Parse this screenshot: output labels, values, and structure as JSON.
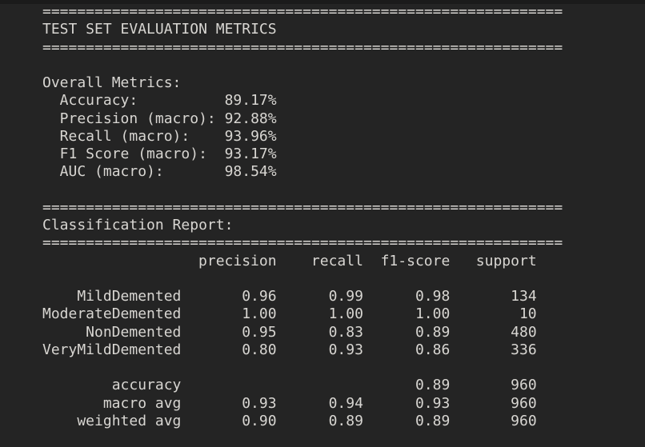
{
  "terminal": {
    "separator": "============================================================",
    "title": "TEST SET EVALUATION METRICS",
    "overall_metrics": {
      "heading": "Overall Metrics:",
      "items": [
        {
          "label": "Accuracy:",
          "value": "89.17%"
        },
        {
          "label": "Precision (macro):",
          "value": "92.88%"
        },
        {
          "label": "Recall (macro):",
          "value": "93.96%"
        },
        {
          "label": "F1 Score (macro):",
          "value": "93.17%"
        },
        {
          "label": "AUC (macro):",
          "value": "98.54%"
        }
      ]
    },
    "classification_report": {
      "heading": "Classification Report:",
      "columns": [
        "precision",
        "recall",
        "f1-score",
        "support"
      ],
      "rows": [
        {
          "name": "MildDemented",
          "precision": "0.96",
          "recall": "0.99",
          "f1_score": "0.98",
          "support": "134"
        },
        {
          "name": "ModerateDemented",
          "precision": "1.00",
          "recall": "1.00",
          "f1_score": "1.00",
          "support": "10"
        },
        {
          "name": "NonDemented",
          "precision": "0.95",
          "recall": "0.83",
          "f1_score": "0.89",
          "support": "480"
        },
        {
          "name": "VeryMildDemented",
          "precision": "0.80",
          "recall": "0.93",
          "f1_score": "0.86",
          "support": "336"
        }
      ],
      "summary_rows": [
        {
          "name": "accuracy",
          "precision": "",
          "recall": "",
          "f1_score": "0.89",
          "support": "960"
        },
        {
          "name": "macro avg",
          "precision": "0.93",
          "recall": "0.94",
          "f1_score": "0.93",
          "support": "960"
        },
        {
          "name": "weighted avg",
          "precision": "0.90",
          "recall": "0.89",
          "f1_score": "0.89",
          "support": "960"
        }
      ]
    },
    "colors": {
      "background": "#242424",
      "text": "#d8d6d2"
    }
  }
}
